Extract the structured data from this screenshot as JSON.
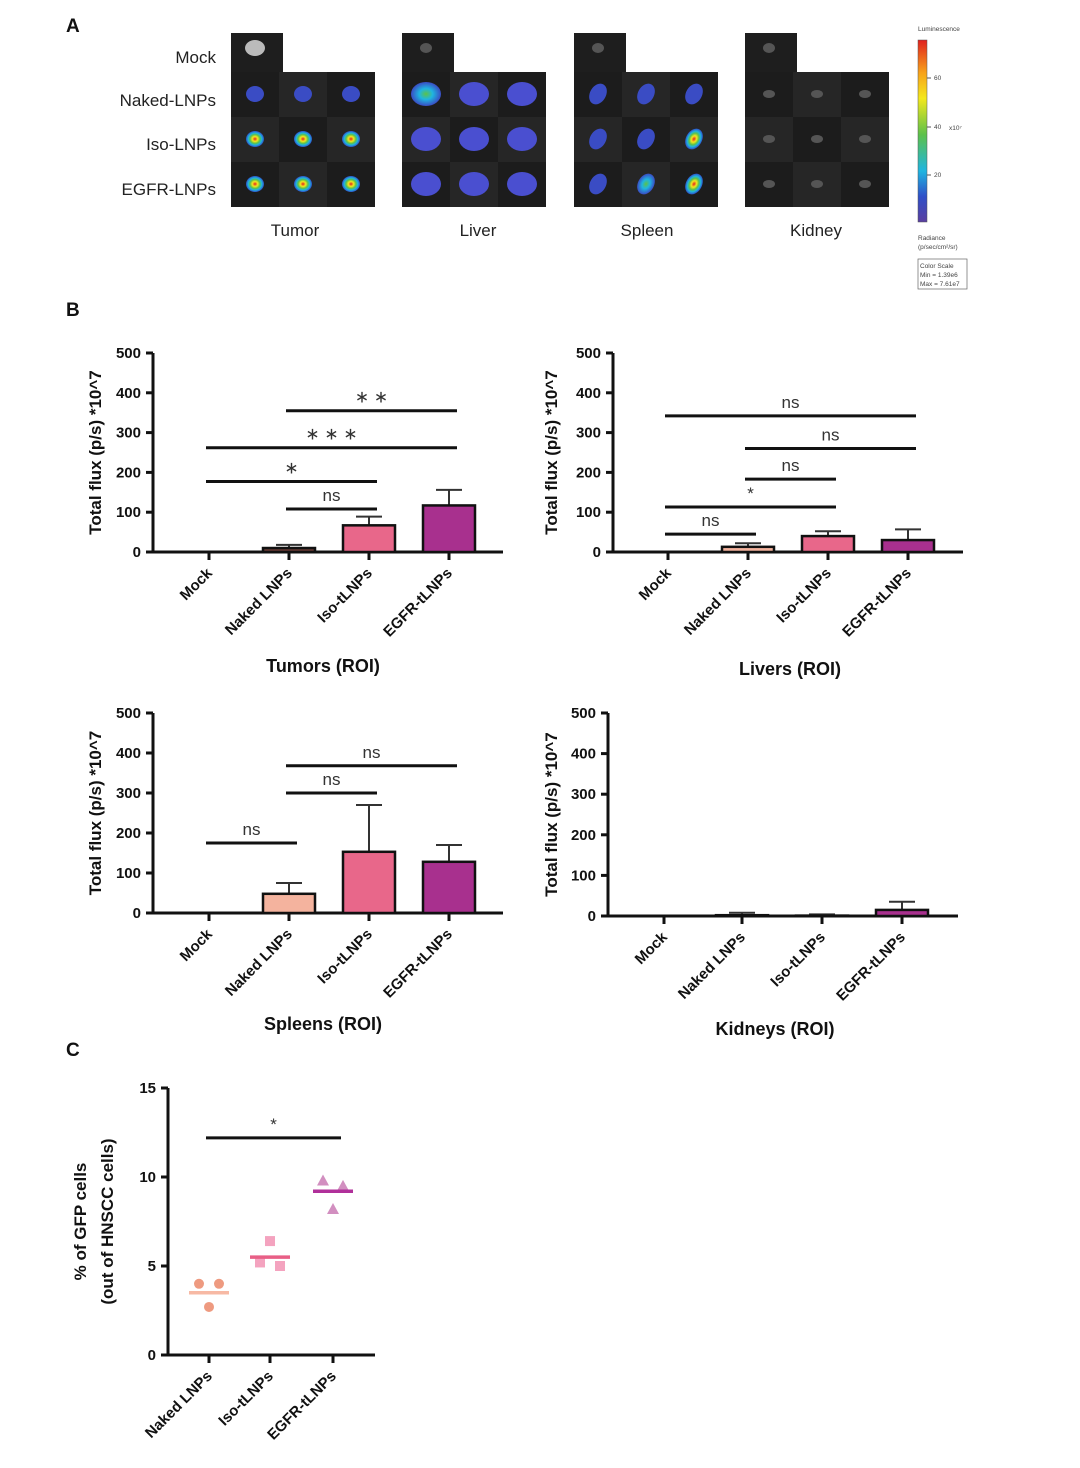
{
  "panel_letters": {
    "a": "A",
    "b": "B",
    "c": "C"
  },
  "panel_a": {
    "row_labels": [
      "Mock",
      "Naked-LNPs",
      "Iso-LNPs",
      "EGFR-LNPs"
    ],
    "organ_labels": [
      "Tumor",
      "Liver",
      "Spleen",
      "Kidney"
    ],
    "colorbar": {
      "title": "Luminescence",
      "ticks": [
        "60",
        "40",
        "20"
      ],
      "unit": "x10⁷",
      "radiance_label": "Radiance",
      "radiance_unit": "(p/sec/cm²/sr)",
      "scale_title": "Color Scale",
      "min": "Min = 1.39e6",
      "max": "Max = 7.61e7",
      "colors": [
        "#e0201e",
        "#f7a21a",
        "#f4e81c",
        "#5cc14a",
        "#1fb5e0",
        "#2f4fc8",
        "#5a3fa0"
      ]
    }
  },
  "chart_data": [
    {
      "type": "bar",
      "title": "Tumors (ROI)",
      "ylabel": "Total flux (p/s) *10^7",
      "categories": [
        "Mock",
        "Naked LNPs",
        "Iso-tLNPs",
        "EGFR-tLNPs"
      ],
      "values": [
        0,
        10,
        67,
        117
      ],
      "errors": [
        0,
        8,
        22,
        39
      ],
      "colors": [
        "#ffffff",
        "#6b3b35",
        "#e8678a",
        "#a8308e"
      ],
      "ylim": [
        0,
        500
      ],
      "yticks": [
        "0",
        "100",
        "200",
        "300",
        "400",
        "500"
      ],
      "significance": [
        {
          "from": 1,
          "to": 2,
          "y": 108,
          "label": "ns"
        },
        {
          "from": 0,
          "to": 2,
          "y": 177,
          "label": "∗"
        },
        {
          "from": 0,
          "to": 3,
          "y": 262,
          "label": "∗ ∗ ∗"
        },
        {
          "from": 1,
          "to": 3,
          "y": 355,
          "label": "∗ ∗"
        }
      ]
    },
    {
      "type": "bar",
      "title": "Livers (ROI)",
      "ylabel": "Total flux (p/s) *10^7",
      "categories": [
        "Mock",
        "Naked LNPs",
        "Iso-tLNPs",
        "EGFR-tLNPs"
      ],
      "values": [
        0,
        13,
        40,
        30
      ],
      "errors": [
        0,
        9,
        12,
        27
      ],
      "colors": [
        "#ffffff",
        "#f4b39e",
        "#e8678a",
        "#a8308e"
      ],
      "ylim": [
        0,
        500
      ],
      "yticks": [
        "0",
        "100",
        "200",
        "300",
        "400",
        "500"
      ],
      "significance": [
        {
          "from": 0,
          "to": 1,
          "y": 45,
          "label": "ns"
        },
        {
          "from": 0,
          "to": 2,
          "y": 113,
          "label": "*"
        },
        {
          "from": 1,
          "to": 2,
          "y": 183,
          "label": "ns"
        },
        {
          "from": 1,
          "to": 3,
          "y": 260,
          "label": "ns"
        },
        {
          "from": 0,
          "to": 3,
          "y": 342,
          "label": "ns"
        }
      ]
    },
    {
      "type": "bar",
      "title": "Spleens (ROI)",
      "ylabel": "Total flux (p/s) *10^7",
      "categories": [
        "Mock",
        "Naked LNPs",
        "Iso-tLNPs",
        "EGFR-tLNPs"
      ],
      "values": [
        0,
        48,
        153,
        128
      ],
      "errors": [
        0,
        27,
        117,
        42
      ],
      "colors": [
        "#ffffff",
        "#f4b39e",
        "#e8678a",
        "#a8308e"
      ],
      "ylim": [
        0,
        500
      ],
      "yticks": [
        "0",
        "100",
        "200",
        "300",
        "400",
        "500"
      ],
      "significance": [
        {
          "from": 0,
          "to": 1,
          "y": 175,
          "label": "ns"
        },
        {
          "from": 1,
          "to": 2,
          "y": 300,
          "label": "ns"
        },
        {
          "from": 1,
          "to": 3,
          "y": 368,
          "label": "ns"
        }
      ]
    },
    {
      "type": "bar",
      "title": "Kidneys (ROI)",
      "ylabel": "Total flux (p/s) *10^7",
      "categories": [
        "Mock",
        "Naked LNPs",
        "Iso-tLNPs",
        "EGFR-tLNPs"
      ],
      "values": [
        0,
        2,
        1,
        15
      ],
      "errors": [
        0,
        6,
        3,
        20
      ],
      "colors": [
        "#ffffff",
        "#f4b39e",
        "#e8678a",
        "#a8308e"
      ],
      "ylim": [
        0,
        500
      ],
      "yticks": [
        "0",
        "100",
        "200",
        "300",
        "400",
        "500"
      ],
      "significance": []
    },
    {
      "type": "scatter",
      "ylabel": [
        "% of GFP cells",
        "(out of HNSCC cells)"
      ],
      "categories": [
        "Naked LNPs",
        "Iso-tLNPs",
        "EGFR-tLNPs"
      ],
      "points": [
        [
          4.0,
          4.0,
          2.7
        ],
        [
          6.4,
          5.2,
          5.0
        ],
        [
          9.8,
          9.5,
          8.2
        ]
      ],
      "means": [
        3.5,
        5.5,
        9.2
      ],
      "markers": [
        "circle",
        "square",
        "triangle"
      ],
      "point_colors": [
        "#ee9a80",
        "#f4a3bf",
        "#d28fc0"
      ],
      "mean_colors": [
        "#f7b9a4",
        "#e85f86",
        "#b0309a"
      ],
      "ylim": [
        0,
        15
      ],
      "yticks": [
        "0",
        "5",
        "10",
        "15"
      ],
      "significance": [
        {
          "from": 0,
          "to": 2,
          "y": 12.2,
          "label": "*"
        }
      ]
    }
  ]
}
